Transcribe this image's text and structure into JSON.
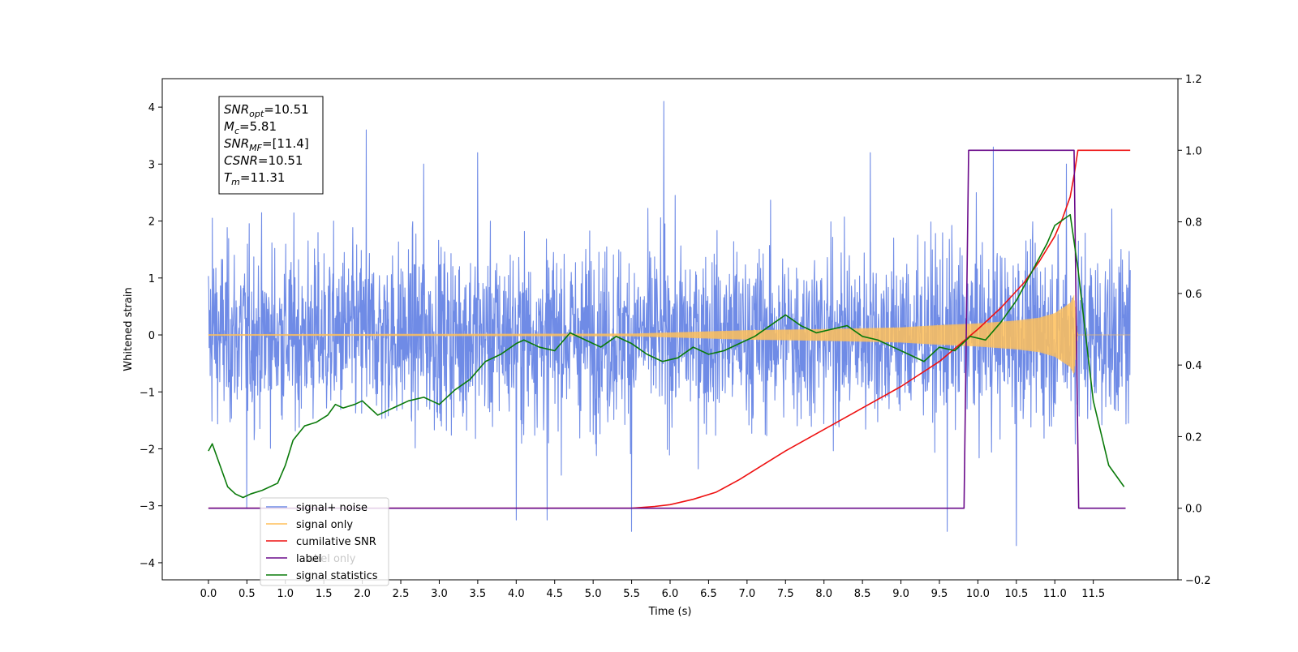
{
  "chart_data": {
    "type": "line",
    "xlabel": "Time (s)",
    "ylabel": "Whitened strain",
    "xlim": [
      -0.6,
      12.6
    ],
    "ylim": [
      -4.3,
      4.5
    ],
    "y2lim": [
      -0.2,
      1.2
    ],
    "x_ticks": [
      "0.0",
      "0.5",
      "1.0",
      "1.5",
      "2.0",
      "2.5",
      "3.0",
      "3.5",
      "4.0",
      "4.5",
      "5.0",
      "5.5",
      "6.0",
      "6.5",
      "7.0",
      "7.5",
      "8.0",
      "8.5",
      "9.0",
      "9.5",
      "10.0",
      "10.5",
      "11.0",
      "11.5"
    ],
    "y_ticks": [
      "4",
      "3",
      "2",
      "1",
      "0",
      "−1",
      "−2",
      "−3",
      "−4"
    ],
    "y2_ticks": [
      "1.2",
      "1.0",
      "0.8",
      "0.6",
      "0.4",
      "0.2",
      "0.0",
      "−0.2"
    ],
    "info_box": {
      "lines": [
        {
          "main": "SNR",
          "sub": "opt",
          "value": "=10.51"
        },
        {
          "main": "M",
          "sub": "c",
          "value": "=5.81"
        },
        {
          "main": "SNR",
          "sub": "MF",
          "value": "=[11.4]"
        },
        {
          "main": "CSNR",
          "sub": "",
          "value": "=10.51"
        },
        {
          "main": "T",
          "sub": "m",
          "value": "=11.31"
        }
      ]
    },
    "legend": {
      "placement": "lower-left",
      "entries": [
        {
          "label": "signal+ noise",
          "color": "#6f8be6"
        },
        {
          "label": "signal only",
          "color": "#ffbf59"
        },
        {
          "label": "cumilative SNR",
          "color": "#ee1111"
        },
        {
          "label": "label",
          "color": "#6a0a8a"
        },
        {
          "label": "signal statistics",
          "color": "#0a7a0a"
        }
      ],
      "occluded_text": "abel only"
    },
    "series": [
      {
        "name": "signal+ noise",
        "axis": "left",
        "style": "noise",
        "color": "#6f8be6",
        "x_range": [
          0.0,
          11.98
        ],
        "typical_amplitude": 1.8,
        "peaks": [
          {
            "x": 0.05,
            "y": 2.05
          },
          {
            "x": 2.05,
            "y": 3.6
          },
          {
            "x": 5.92,
            "y": 4.1
          },
          {
            "x": 3.5,
            "y": 3.2
          },
          {
            "x": 10.2,
            "y": 3.3
          },
          {
            "x": 10.5,
            "y": -3.7
          },
          {
            "x": 9.6,
            "y": -3.45
          },
          {
            "x": 5.5,
            "y": -3.45
          },
          {
            "x": 4.0,
            "y": -3.25
          },
          {
            "x": 4.4,
            "y": -3.25
          },
          {
            "x": 0.5,
            "y": -3.05
          },
          {
            "x": 2.8,
            "y": 3.0
          },
          {
            "x": 8.6,
            "y": 3.2
          },
          {
            "x": 11.15,
            "y": 3.0
          }
        ]
      },
      {
        "name": "signal only",
        "axis": "left",
        "style": "chirp",
        "color": "#ffbf59",
        "envelope": [
          [
            0.0,
            0.01
          ],
          [
            5.5,
            0.02
          ],
          [
            7.0,
            0.08
          ],
          [
            8.0,
            0.1
          ],
          [
            9.0,
            0.13
          ],
          [
            9.5,
            0.17
          ],
          [
            10.0,
            0.2
          ],
          [
            10.5,
            0.25
          ],
          [
            10.8,
            0.3
          ],
          [
            11.0,
            0.38
          ],
          [
            11.2,
            0.56
          ],
          [
            11.25,
            0.7
          ],
          [
            11.3,
            0.0
          ],
          [
            11.98,
            0.0
          ]
        ]
      },
      {
        "name": "cumilative SNR",
        "axis": "right",
        "color": "#ee1111",
        "x": [
          0.0,
          5.0,
          5.5,
          5.8,
          6.0,
          6.3,
          6.6,
          6.9,
          7.2,
          7.5,
          8.0,
          8.5,
          9.0,
          9.5,
          10.0,
          10.3,
          10.6,
          10.8,
          11.0,
          11.1,
          11.2,
          11.25,
          11.3,
          11.98
        ],
        "values": [
          0.0,
          0.0,
          0.0,
          0.005,
          0.01,
          0.025,
          0.045,
          0.08,
          0.12,
          0.16,
          0.22,
          0.28,
          0.34,
          0.41,
          0.5,
          0.56,
          0.63,
          0.69,
          0.76,
          0.81,
          0.87,
          0.93,
          1.0,
          1.0
        ]
      },
      {
        "name": "label",
        "axis": "right",
        "color": "#6a0a8a",
        "x": [
          0.0,
          9.82,
          9.88,
          11.25,
          11.31,
          11.92
        ],
        "values": [
          0.0,
          0.0,
          1.0,
          1.0,
          0.0,
          0.0
        ]
      },
      {
        "name": "signal statistics",
        "axis": "right",
        "color": "#0a7a0a",
        "x": [
          0.0,
          0.05,
          0.15,
          0.25,
          0.35,
          0.45,
          0.55,
          0.7,
          0.9,
          1.0,
          1.1,
          1.25,
          1.4,
          1.55,
          1.65,
          1.75,
          1.9,
          2.0,
          2.1,
          2.2,
          2.4,
          2.6,
          2.8,
          3.0,
          3.2,
          3.4,
          3.6,
          3.8,
          4.0,
          4.1,
          4.3,
          4.5,
          4.7,
          4.9,
          5.1,
          5.3,
          5.5,
          5.7,
          5.9,
          6.1,
          6.3,
          6.5,
          6.7,
          6.9,
          7.1,
          7.3,
          7.5,
          7.7,
          7.9,
          8.1,
          8.3,
          8.5,
          8.7,
          8.9,
          9.1,
          9.3,
          9.5,
          9.7,
          9.9,
          10.1,
          10.3,
          10.5,
          10.7,
          10.9,
          11.0,
          11.2,
          11.3,
          11.5,
          11.7,
          11.9
        ],
        "values": [
          0.16,
          0.18,
          0.12,
          0.06,
          0.04,
          0.03,
          0.04,
          0.05,
          0.07,
          0.12,
          0.19,
          0.23,
          0.24,
          0.26,
          0.29,
          0.28,
          0.29,
          0.3,
          0.28,
          0.26,
          0.28,
          0.3,
          0.31,
          0.29,
          0.33,
          0.36,
          0.41,
          0.43,
          0.46,
          0.47,
          0.45,
          0.44,
          0.49,
          0.47,
          0.45,
          0.48,
          0.46,
          0.43,
          0.41,
          0.42,
          0.45,
          0.43,
          0.44,
          0.46,
          0.48,
          0.51,
          0.54,
          0.51,
          0.49,
          0.5,
          0.51,
          0.48,
          0.47,
          0.45,
          0.43,
          0.41,
          0.45,
          0.44,
          0.48,
          0.47,
          0.52,
          0.58,
          0.66,
          0.74,
          0.79,
          0.82,
          0.67,
          0.3,
          0.12,
          0.06
        ]
      }
    ]
  }
}
